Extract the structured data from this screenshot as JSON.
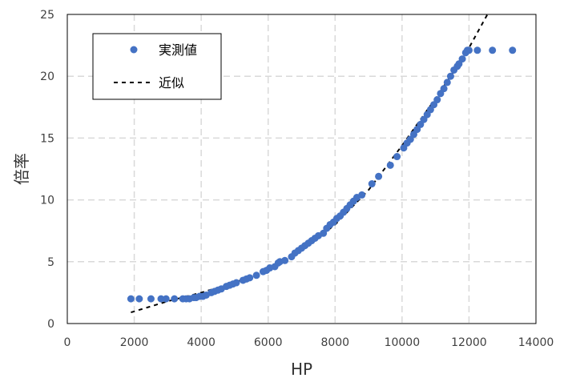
{
  "chart_data": {
    "type": "scatter",
    "xlabel": "HP",
    "ylabel": "倍率",
    "xlim": [
      0,
      14000
    ],
    "ylim": [
      0,
      25
    ],
    "xticks": [
      0,
      2000,
      4000,
      6000,
      8000,
      10000,
      12000,
      14000
    ],
    "yticks": [
      0,
      5,
      10,
      15,
      20,
      25
    ],
    "grid": true,
    "legend_position": "top-left",
    "colors": {
      "points": "#4472C4",
      "fit": "#000000",
      "grid": "#D9D9D9"
    },
    "series": [
      {
        "name": "実測値",
        "kind": "scatter",
        "x": [
          1900,
          2150,
          2500,
          2800,
          2950,
          3200,
          3450,
          3550,
          3650,
          3780,
          3850,
          3950,
          4050,
          4150,
          4300,
          4400,
          4500,
          4600,
          4750,
          4850,
          4950,
          5050,
          5250,
          5350,
          5450,
          5650,
          5850,
          5950,
          6050,
          6200,
          6300,
          6350,
          6500,
          6700,
          6800,
          6900,
          7000,
          7100,
          7200,
          7300,
          7400,
          7500,
          7650,
          7750,
          7850,
          7950,
          8050,
          8150,
          8250,
          8350,
          8450,
          8550,
          8650,
          8800,
          9100,
          9300,
          9650,
          9850,
          10050,
          10150,
          10250,
          10350,
          10450,
          10550,
          10650,
          10750,
          10850,
          10950,
          11050,
          11150,
          11250,
          11350,
          11450,
          11550,
          11650,
          11700,
          11800,
          11900,
          11950,
          12000,
          12250,
          12700,
          13300
        ],
        "y": [
          2.0,
          2.0,
          2.0,
          2.0,
          2.0,
          2.0,
          2.0,
          2.0,
          2.0,
          2.1,
          2.1,
          2.2,
          2.2,
          2.3,
          2.5,
          2.6,
          2.7,
          2.8,
          3.0,
          3.1,
          3.2,
          3.3,
          3.5,
          3.6,
          3.7,
          3.9,
          4.2,
          4.3,
          4.5,
          4.6,
          4.9,
          5.0,
          5.1,
          5.4,
          5.7,
          5.9,
          6.1,
          6.3,
          6.5,
          6.7,
          6.9,
          7.1,
          7.3,
          7.7,
          8.0,
          8.2,
          8.5,
          8.7,
          9.0,
          9.3,
          9.6,
          9.9,
          10.2,
          10.4,
          11.3,
          11.9,
          12.8,
          13.5,
          14.2,
          14.6,
          14.9,
          15.3,
          15.7,
          16.1,
          16.5,
          16.9,
          17.3,
          17.7,
          18.1,
          18.6,
          19.0,
          19.5,
          20.0,
          20.5,
          20.8,
          21.0,
          21.4,
          21.9,
          22.1,
          22.1,
          22.1,
          22.1,
          22.1
        ]
      },
      {
        "name": "近似",
        "kind": "line",
        "style": "dashed",
        "x": [
          1900,
          3000,
          4000,
          5000,
          6000,
          7000,
          8000,
          9000,
          10000,
          11000,
          11500,
          12000,
          12550
        ],
        "y": [
          0.9,
          1.8,
          2.5,
          3.3,
          4.4,
          5.9,
          8.0,
          10.8,
          14.4,
          18.2,
          20.2,
          22.3,
          25.0
        ]
      }
    ]
  }
}
